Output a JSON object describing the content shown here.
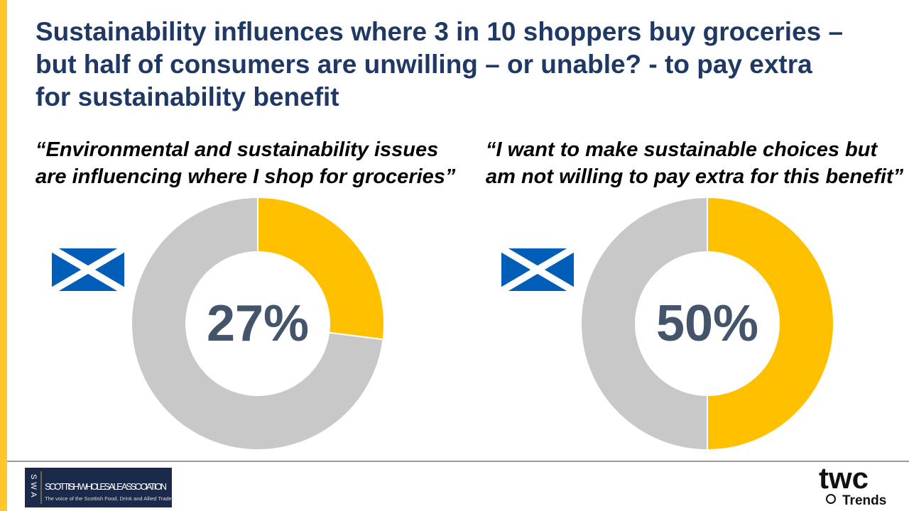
{
  "title": "Sustainability influences where 3 in 10 shoppers buy groceries – but half of consumers are unwilling – or unable? - to pay extra for sustainability benefit",
  "chart_data": [
    {
      "type": "donut",
      "title": "“Environmental and sustainability issues are influencing where I shop for groceries”",
      "values": [
        27,
        73
      ],
      "value_labels": [
        "27%",
        null
      ],
      "colors": [
        "#ffc000",
        "#c8c8c8"
      ]
    },
    {
      "type": "donut",
      "title": "“I want to make sustainable choices but am not willing to pay extra for this benefit”",
      "values": [
        50,
        50
      ],
      "value_labels": [
        "50%",
        null
      ],
      "colors": [
        "#ffc000",
        "#c8c8c8"
      ]
    }
  ],
  "footer": {
    "swa_letters": "SWA",
    "swa_name": "SCOTTISH WHOLESALE ASSOCIATION",
    "swa_tagline": "The voice of the Scottish Food, Drink and Allied Trades",
    "twc": "twc",
    "trends": "Trends"
  }
}
